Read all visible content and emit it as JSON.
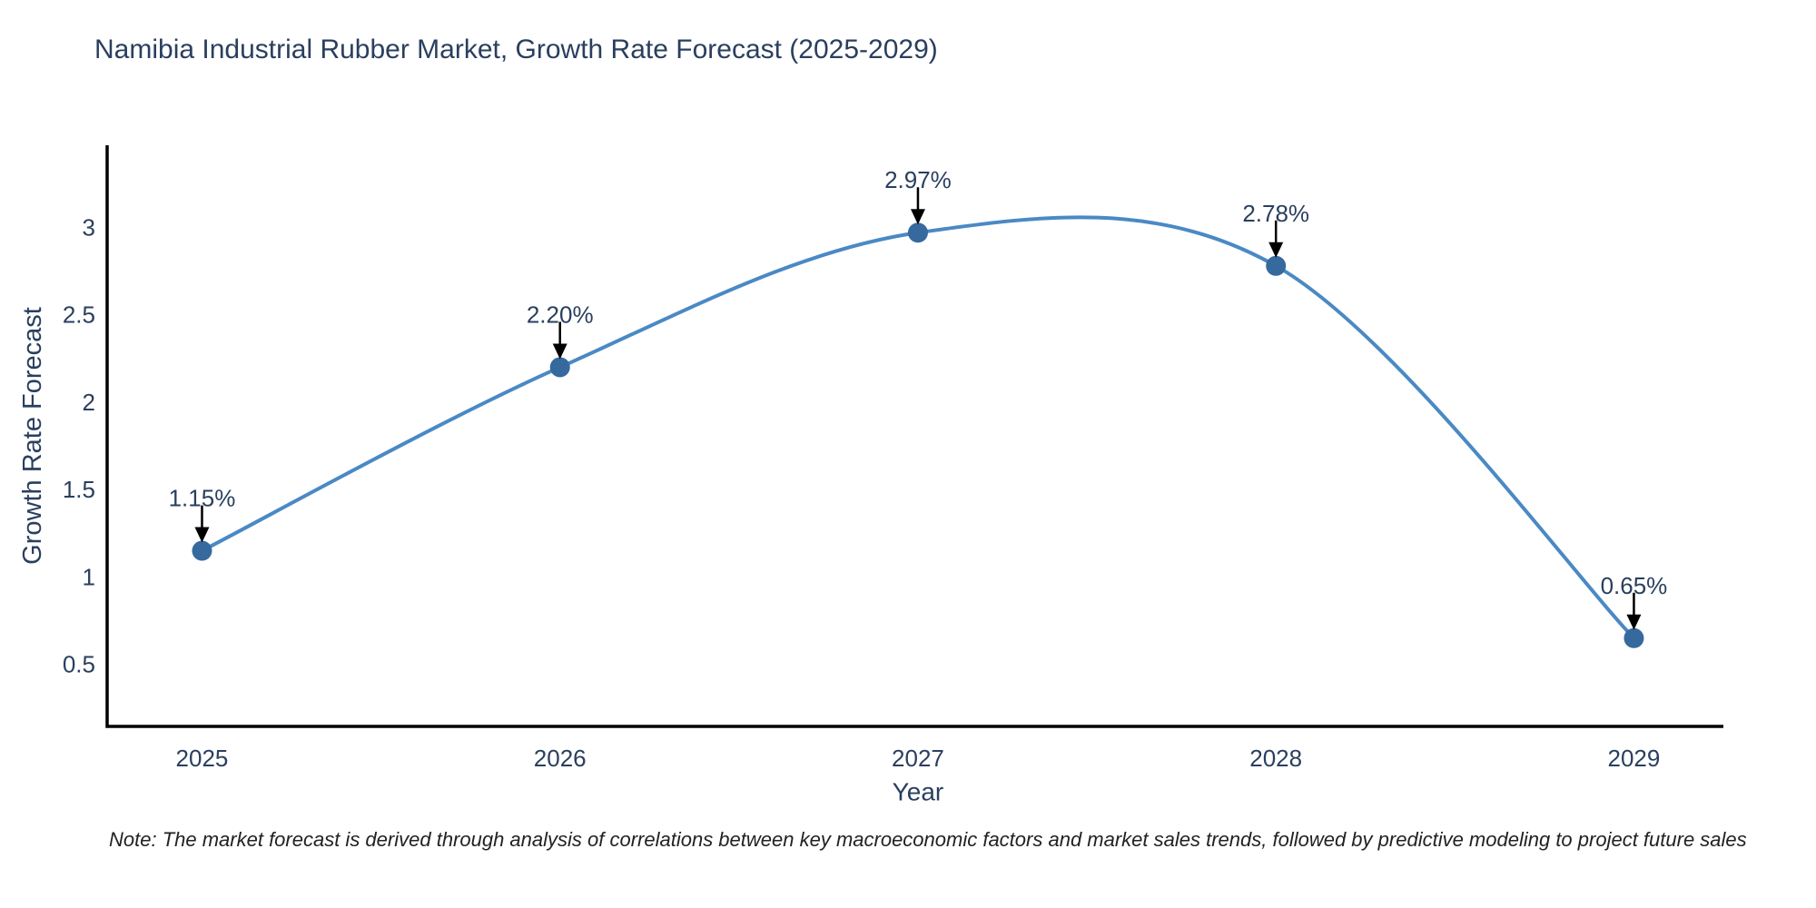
{
  "title": "Namibia Industrial Rubber Market, Growth Rate Forecast (2025-2029)",
  "note": "Note: The market forecast is derived through analysis of correlations between key macroeconomic factors and market sales trends, followed by predictive modeling to project future sales",
  "chart_data": {
    "type": "line",
    "title": "Namibia Industrial Rubber Market, Growth Rate Forecast (2025-2029)",
    "x": [
      2025,
      2026,
      2027,
      2028,
      2029
    ],
    "values": [
      1.15,
      2.2,
      2.97,
      2.78,
      0.65
    ],
    "point_labels": [
      "1.15%",
      "2.20%",
      "2.97%",
      "2.78%",
      "0.65%"
    ],
    "x_tick_labels": [
      "2025",
      "2026",
      "2027",
      "2028",
      "2029"
    ],
    "y_ticks": [
      0.5,
      1,
      1.5,
      2,
      2.5,
      3
    ],
    "y_tick_labels": [
      "0.5",
      "1",
      "1.5",
      "2",
      "2.5",
      "3"
    ],
    "xlabel": "Year",
    "ylabel": "Growth Rate Forecast",
    "line_shape": "spline",
    "x_range": [
      2024.735,
      2029.25
    ],
    "y_range": [
      0.145,
      3.47
    ],
    "grid": false,
    "legend": "none",
    "colors": {
      "line": "#4a89c4",
      "marker": "#36699e",
      "axis": "#000000",
      "text": "#2a3f5f",
      "arrow": "#000000",
      "background": "#ffffff"
    }
  }
}
